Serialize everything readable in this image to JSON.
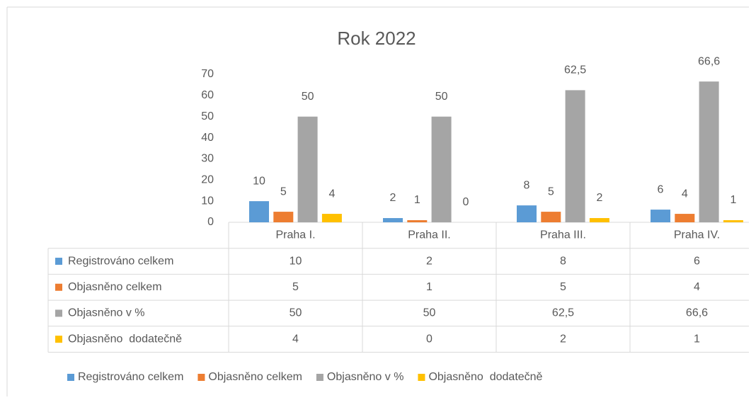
{
  "chart_data": {
    "type": "bar",
    "title": "Rok 2022",
    "categories": [
      "Praha I.",
      "Praha II.",
      "Praha III.",
      "Praha IV."
    ],
    "series": [
      {
        "name": "Registrováno celkem",
        "color": "#5b9bd5",
        "values": [
          10,
          2,
          8,
          6
        ]
      },
      {
        "name": "Objasněno celkem",
        "color": "#ed7d31",
        "values": [
          5,
          1,
          5,
          4
        ]
      },
      {
        "name": "Objasněno v %",
        "color": "#a5a5a5",
        "values": [
          50,
          50,
          62.5,
          66.6
        ],
        "value_labels": [
          "50",
          "50",
          "62,5",
          "66,6"
        ]
      },
      {
        "name": "Objasněno  dodatečně",
        "color": "#ffc000",
        "values": [
          4,
          0,
          2,
          1
        ]
      }
    ],
    "ylim": [
      0,
      70
    ],
    "yticks": [
      0,
      10,
      20,
      30,
      40,
      50,
      60,
      70
    ],
    "grid": false,
    "legend": "bottom"
  }
}
